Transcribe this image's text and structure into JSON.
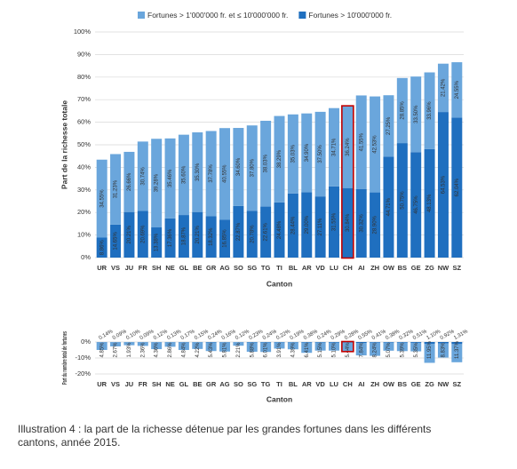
{
  "chart_data": [
    {
      "type": "stacked_bar",
      "y_label": "Part de la richesse totale",
      "x_label": "Canton",
      "categories": [
        "UR",
        "VS",
        "JU",
        "FR",
        "SH",
        "NE",
        "GL",
        "BE",
        "GR",
        "AG",
        "SO",
        "SG",
        "TG",
        "TI",
        "BL",
        "AR",
        "VD",
        "LU",
        "CH",
        "AI",
        "ZH",
        "OW",
        "BS",
        "GE",
        "ZG",
        "NW",
        "SZ"
      ],
      "series": [
        {
          "name": "Fortunes > 1'000'000 fr. et ≤ 10'000'000 fr.",
          "color": "#6aa6dc",
          "values": [
            34.55,
            31.23,
            26.66,
            30.74,
            39.28,
            35.46,
            35.6,
            35.3,
            37.78,
            40.55,
            34.6,
            37.8,
            38.03,
            38.29,
            35.03,
            34.9,
            37.5,
            34.71,
            36.24,
            41.55,
            42.53,
            27.25,
            28.85,
            33.5,
            33.96,
            21.42,
            24.55
          ],
          "value_labels": [
            "34.55%",
            "31.23%",
            "26.66%",
            "30.74%",
            "39.28%",
            "35.46%",
            "35.60%",
            "35.30%",
            "37.78%",
            "40.55%",
            "34.60%",
            "37.80%",
            "38.03%",
            "38.29%",
            "35.03%",
            "34.90%",
            "37.50%",
            "34.71%",
            "36.24%",
            "41.55%",
            "42.53%",
            "27.25%",
            "28.85%",
            "33.50%",
            "33.96%",
            "21.42%",
            "24.55%"
          ]
        },
        {
          "name": "Fortunes > 10'000'000 fr.",
          "color": "#1f6fbf",
          "values": [
            8.86,
            14.65,
            20.21,
            20.69,
            13.38,
            17.36,
            18.87,
            20.21,
            18.32,
            16.85,
            22.87,
            20.78,
            22.61,
            24.48,
            28.44,
            29.0,
            27.11,
            31.55,
            30.84,
            30.32,
            28.9,
            44.71,
            50.75,
            46.75,
            48.13,
            64.53,
            62.04
          ],
          "value_labels": [
            "8.86%",
            "14.65%",
            "20.21%",
            "20.69%",
            "13.38%",
            "17.36%",
            "18.87%",
            "20.21%",
            "18.32%",
            "16.85%",
            "22.87%",
            "20.78%",
            "22.61%",
            "24.48%",
            "28.44%",
            "29.00%",
            "27.11%",
            "31.55%",
            "30.84%",
            "30.32%",
            "28.90%",
            "44.71%",
            "50.75%",
            "46.75%",
            "48.13%",
            "64.53%",
            "62.04%"
          ]
        }
      ],
      "ylim": [
        0,
        100
      ],
      "yticks": [
        {
          "value": 0,
          "label": "0%"
        },
        {
          "value": 10,
          "label": "10%"
        },
        {
          "value": 20,
          "label": "20%"
        },
        {
          "value": 30,
          "label": "30%"
        },
        {
          "value": 40,
          "label": "40%"
        },
        {
          "value": 50,
          "label": "50%"
        },
        {
          "value": 60,
          "label": "60%"
        },
        {
          "value": 70,
          "label": "70%"
        },
        {
          "value": 80,
          "label": "80%"
        },
        {
          "value": 90,
          "label": "90%"
        },
        {
          "value": 100,
          "label": "100%"
        }
      ],
      "grid": true,
      "legend": "top",
      "highlight": {
        "category": "CH",
        "color": "#c00000"
      }
    },
    {
      "type": "stacked_bar",
      "y_label": "Part du nombre total de fortunes",
      "x_label": "Canton",
      "categories": [
        "UR",
        "VS",
        "JU",
        "FR",
        "SH",
        "NE",
        "GL",
        "BE",
        "GR",
        "AG",
        "SO",
        "SG",
        "TG",
        "TI",
        "BL",
        "AR",
        "VD",
        "LU",
        "CH",
        "AI",
        "ZH",
        "OW",
        "BS",
        "GE",
        "ZG",
        "NW",
        "SZ"
      ],
      "series": [
        {
          "color": "#1f6fbf",
          "values": [
            -0.14,
            -0.09,
            -0.1,
            -0.09,
            -0.12,
            -0.13,
            -0.17,
            -0.15,
            -0.24,
            -0.16,
            -0.12,
            -0.23,
            -0.24,
            -0.22,
            -0.19,
            -0.38,
            -0.24,
            -0.29,
            -0.28,
            -0.55,
            -0.41,
            -0.38,
            -0.32,
            -0.51,
            -1.1,
            -0.92,
            -1.31
          ],
          "value_labels": [
            "0.14%",
            "0.09%",
            "0.10%",
            "0.09%",
            "0.12%",
            "0.13%",
            "0.17%",
            "0.15%",
            "0.24%",
            "0.16%",
            "0.12%",
            "0.23%",
            "0.24%",
            "0.22%",
            "0.19%",
            "0.38%",
            "0.24%",
            "0.29%",
            "0.28%",
            "0.55%",
            "0.41%",
            "0.38%",
            "0.32%",
            "0.51%",
            "1.10%",
            "0.92%",
            "1.31%"
          ]
        },
        {
          "color": "#6aa6dc",
          "values": [
            -4.85,
            -2.67,
            -1.93,
            -2.36,
            -4.36,
            -2.86,
            -4.84,
            -4.22,
            -5.43,
            -5.81,
            -2.21,
            -5.88,
            -6.01,
            -3.91,
            -4.39,
            -6.41,
            -5.15,
            -5.1,
            -5.44,
            -7.84,
            -8.24,
            -5.07,
            -5.39,
            -5.35,
            -11.95,
            -8.83,
            -11.37
          ],
          "value_labels": [
            "4.85%",
            "2.67%",
            "1.93%",
            "2.36%",
            "4.36%",
            "2.86%",
            "4.84%",
            "4.22%",
            "5.43%",
            "5.81%",
            "2.21%",
            "5.88%",
            "6.01%",
            "3.91%",
            "4.39%",
            "6.41%",
            "5.15%",
            "5.10%",
            "5.44%",
            "7.84%",
            "8.24%",
            "5.07%",
            "5.39%",
            "5.35%",
            "11.95%",
            "8.83%",
            "11.37%"
          ]
        }
      ],
      "ylim": [
        -20,
        0
      ],
      "yticks": [
        {
          "value": 0,
          "label": "0%"
        },
        {
          "value": -10,
          "label": "-10%"
        },
        {
          "value": -20,
          "label": "-20%"
        }
      ],
      "grid": true,
      "highlight": {
        "category": "CH",
        "color": "#c00000"
      }
    }
  ],
  "caption": [
    "Illustration 4 : la part de la richesse détenue par les grandes fortunes dans les différents",
    "cantons, année 2015."
  ]
}
